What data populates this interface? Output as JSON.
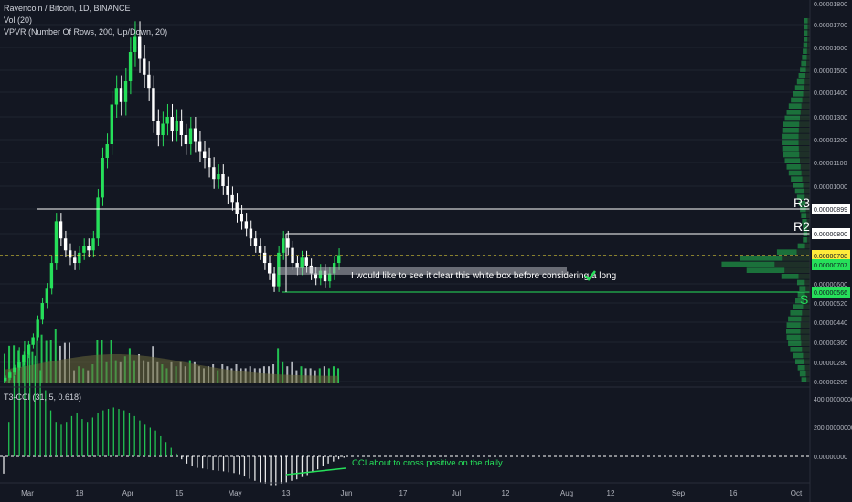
{
  "header": {
    "symbol_line": "Ravencoin / Bitcoin, 1D, BINANCE",
    "volume_line": "Vol (20)",
    "vpvr_line": "VPVR (Number Of Rows, 200, Up/Down, 20)"
  },
  "indicator": {
    "title": "T3-CCI (31, 5, 0.618)"
  },
  "colors": {
    "up": "#26e05a",
    "down": "#ffffff",
    "background": "#131722",
    "grid": "#1f2430",
    "level_line": "#ffffff",
    "support_line": "#26e05a",
    "last_price_tag": "#ffeb3b"
  },
  "annotations": {
    "r3": "R3",
    "r2": "R2",
    "s": "S",
    "box_note": "I would like to see it clear this white box before considering a long",
    "check_icon": "check-mark-icon",
    "cci_note": "CCI about to cross positive on the daily"
  },
  "chart_data": {
    "type": "candlestick",
    "title": "Ravencoin / Bitcoin, 1D, BINANCE",
    "x_ticks": [
      "Mar",
      "18",
      "Apr",
      "15",
      "May",
      "13",
      "Jun",
      "17",
      "Jul",
      "12",
      "Aug",
      "12",
      "Sep",
      "16",
      "Oct"
    ],
    "price_axis": {
      "ticks": [
        "0.00001800",
        "0.00001700",
        "0.00001600",
        "0.00001500",
        "0.00001400",
        "0.00001300",
        "0.00001200",
        "0.00001100",
        "0.00001000",
        "0.00000899",
        "0.00000800",
        "0.00000708",
        "0.00000707",
        "0.00000600",
        "0.00000566",
        "0.00000520",
        "0.00000440",
        "0.00000360",
        "0.00000280",
        "0.00000205"
      ],
      "range": [
        2.05e-06,
        1.8e-05
      ]
    },
    "levels": [
      {
        "name": "R3",
        "price": 8.99e-06
      },
      {
        "name": "R2",
        "price": 8e-06
      },
      {
        "name": "S",
        "price": 5.66e-06
      }
    ],
    "last_price": 7.08e-06,
    "last_close_tag": 7.07e-06,
    "white_box": {
      "top": 6.65e-06,
      "bottom": 6.35e-06
    },
    "candles_close": [
      2.2e-06,
      2.4e-06,
      2.6e-06,
      2.8e-06,
      3.1e-06,
      3.5e-06,
      3.8e-06,
      4.5e-06,
      5.2e-06,
      5.8e-06,
      6.8e-06,
      8.5e-06,
      7.8e-06,
      7.3e-06,
      7e-06,
      6.8e-06,
      7.2e-06,
      7.5e-06,
      7.3e-06,
      7.8e-06,
      9.5e-06,
      1.12e-05,
      1.18e-05,
      1.35e-05,
      1.42e-05,
      1.36e-05,
      1.45e-05,
      1.58e-05,
      1.65e-05,
      1.55e-05,
      1.48e-05,
      1.42e-05,
      1.28e-05,
      1.22e-05,
      1.27e-05,
      1.3e-05,
      1.24e-05,
      1.28e-05,
      1.22e-05,
      1.18e-05,
      1.25e-05,
      1.19e-05,
      1.15e-05,
      1.12e-05,
      1.08e-05,
      1.03e-05,
      1.05e-05,
      1e-05,
      9.6e-06,
      9.3e-06,
      8.8e-06,
      8.5e-06,
      8.2e-06,
      7.8e-06,
      7.5e-06,
      7.2e-06,
      6.8e-06,
      6.4e-06,
      5.9e-06,
      7.2e-06,
      7.8e-06,
      7.4e-06,
      6.8e-06,
      6.6e-06,
      7e-06,
      6.7e-06,
      6.4e-06,
      6.2e-06,
      6.5e-06,
      6.1e-06,
      6.4e-06,
      6.8e-06,
      7.1e-06
    ],
    "volume_profile_bins": 60,
    "cci": {
      "axis_ticks": [
        "400.00000000",
        "200.00000000",
        "0.00000000"
      ],
      "range": [
        -100,
        450
      ],
      "values": [
        -60,
        120,
        280,
        380,
        400,
        390,
        350,
        300,
        230,
        160,
        120,
        110,
        120,
        140,
        150,
        130,
        120,
        135,
        150,
        160,
        165,
        170,
        165,
        160,
        150,
        140,
        125,
        110,
        100,
        90,
        70,
        50,
        30,
        10,
        -10,
        -25,
        -35,
        -40,
        -42,
        -45,
        -48,
        -50,
        -52,
        -55,
        -58,
        -62,
        -70,
        -78,
        -85,
        -90,
        -95,
        -100,
        -100,
        -95,
        -90,
        -85,
        -80,
        -72,
        -65,
        -55,
        -45,
        -35,
        -25,
        -18,
        -10,
        -5
      ]
    }
  }
}
